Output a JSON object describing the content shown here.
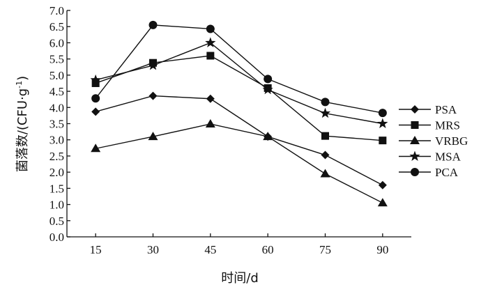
{
  "chart_data": {
    "type": "line",
    "title": "",
    "xlabel": "时间/d",
    "ylabel_main": "菌落数/(CFU·g",
    "ylabel_sup": "-1",
    "ylabel_end": ")",
    "x": [
      15,
      30,
      45,
      60,
      75,
      90
    ],
    "x_tick_labels": [
      "15",
      "30",
      "45",
      "60",
      "75",
      "90"
    ],
    "xlim": [
      7.5,
      97.5
    ],
    "ylim": [
      0,
      7
    ],
    "y_ticks": [
      0.0,
      0.5,
      1.0,
      1.5,
      2.0,
      2.5,
      3.0,
      3.5,
      4.0,
      4.5,
      5.0,
      5.5,
      6.0,
      6.5,
      7.0
    ],
    "y_tick_labels": [
      "0.0",
      "0.5",
      "1.0",
      "1.5",
      "2.0",
      "2.5",
      "3.0",
      "3.5",
      "4.0",
      "4.5",
      "5.0",
      "5.5",
      "6.0",
      "6.5",
      "7.0"
    ],
    "grid": false,
    "legend_position": "right",
    "series": [
      {
        "name": "PSA",
        "marker": "diamond",
        "values": [
          3.87,
          4.36,
          4.27,
          3.1,
          2.53,
          1.6
        ]
      },
      {
        "name": "MRS",
        "marker": "square",
        "values": [
          4.75,
          5.38,
          5.6,
          4.6,
          3.12,
          2.98
        ]
      },
      {
        "name": "VRBG",
        "marker": "triangle",
        "values": [
          2.73,
          3.1,
          3.49,
          3.1,
          1.95,
          1.05
        ]
      },
      {
        "name": "MSA",
        "marker": "star",
        "values": [
          4.85,
          5.3,
          6.0,
          4.55,
          3.82,
          3.5
        ]
      },
      {
        "name": "PCA",
        "marker": "circle",
        "values": [
          4.28,
          6.55,
          6.43,
          4.88,
          4.17,
          3.83
        ]
      }
    ]
  }
}
